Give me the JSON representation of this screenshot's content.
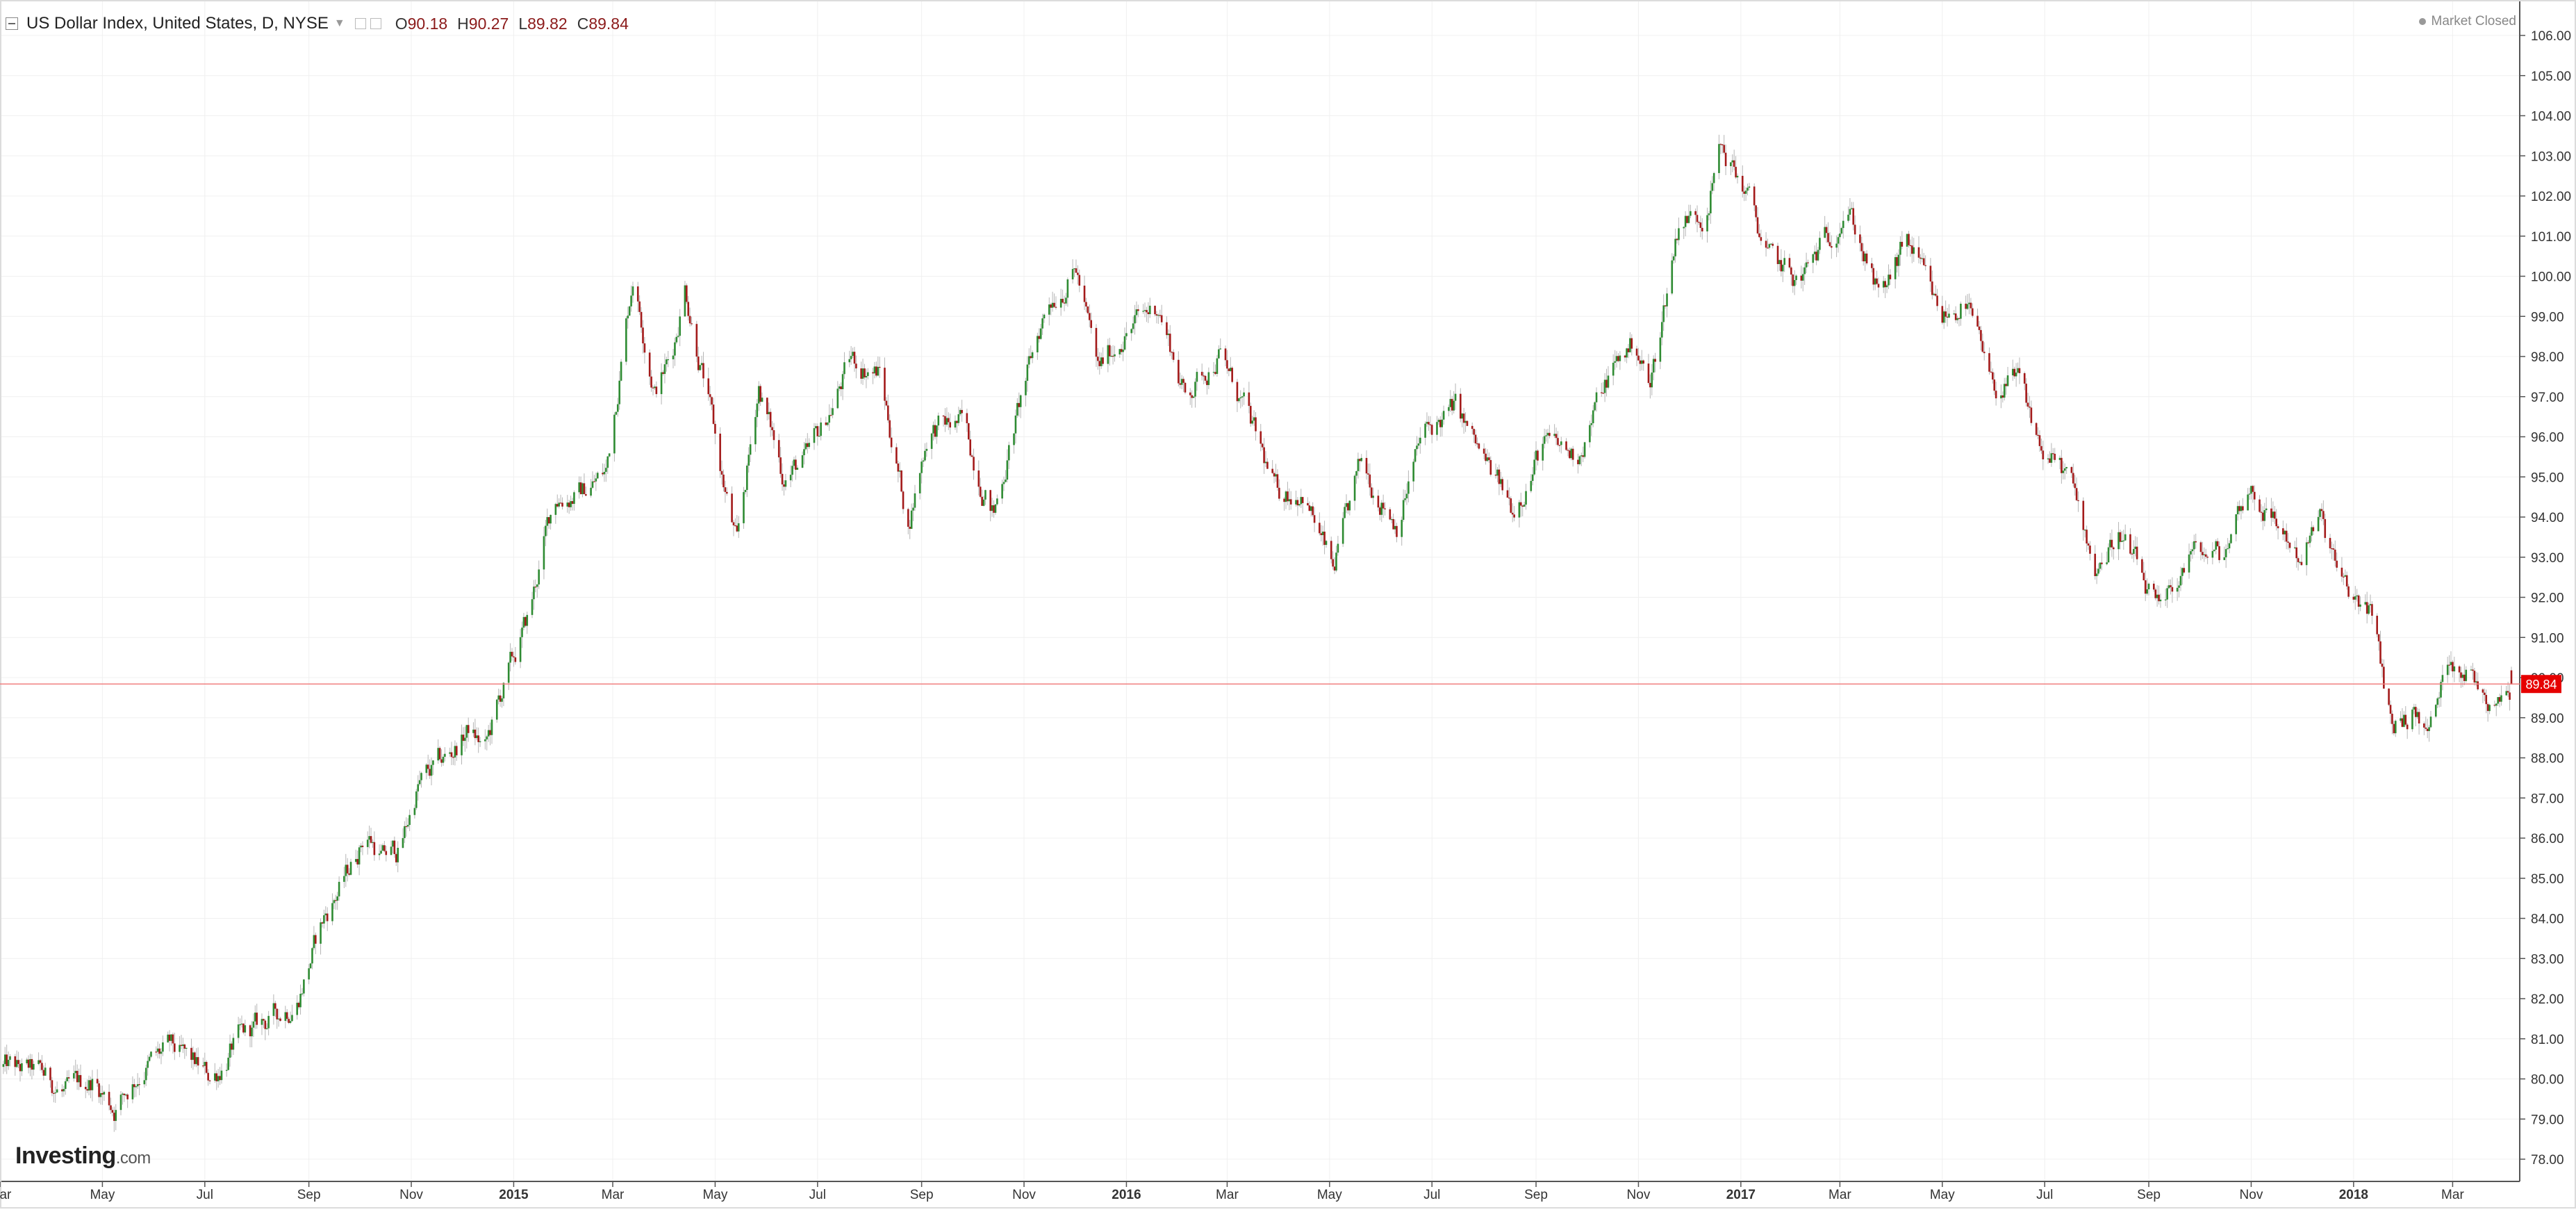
{
  "header": {
    "symbol_title": "US Dollar Index, United States, D, NYSE",
    "open_label": "O",
    "open_value": "90.18",
    "high_label": "H",
    "high_value": "90.27",
    "low_label": "L",
    "low_value": "89.82",
    "close_label": "C",
    "close_value": "89.84",
    "market_status": "Market Closed",
    "caret_icon": "caret-down-icon"
  },
  "branding": {
    "logo_name": "Investing",
    "logo_suffix": ".com"
  },
  "colors": {
    "up": "#2e8b32",
    "down": "#a31a1a",
    "last_price_line": "#f08080",
    "last_price_badge": "#e60000",
    "grid": "#f0f0f0"
  },
  "chart_data": {
    "type": "candlestick",
    "title": "US Dollar Index, United States, D, NYSE",
    "interval": "D",
    "x_tick_labels": [
      "Mar",
      "May",
      "Jul",
      "Sep",
      "Nov",
      "2015",
      "Mar",
      "May",
      "Jul",
      "Sep",
      "Nov",
      "2016",
      "Mar",
      "May",
      "Jul",
      "Sep",
      "Nov",
      "2017",
      "Mar",
      "May",
      "Jul",
      "Sep",
      "Nov",
      "2018",
      "Mar"
    ],
    "x_range": [
      "2014-03-01",
      "2018-04-05"
    ],
    "y_range": [
      77.5,
      106.5
    ],
    "y_ticks": [
      "78.00",
      "79.00",
      "80.00",
      "81.00",
      "82.00",
      "83.00",
      "84.00",
      "85.00",
      "86.00",
      "87.00",
      "88.00",
      "89.00",
      "90.00",
      "91.00",
      "92.00",
      "93.00",
      "94.00",
      "95.00",
      "96.00",
      "97.00",
      "98.00",
      "99.00",
      "100.00",
      "101.00",
      "102.00",
      "103.00",
      "104.00",
      "105.00",
      "106.00"
    ],
    "last_price": "89.84",
    "grid": true,
    "price_path": [
      [
        "2014-03-01",
        80.3
      ],
      [
        "2014-03-25",
        80.1
      ],
      [
        "2014-04-10",
        79.6
      ],
      [
        "2014-04-25",
        80.0
      ],
      [
        "2014-05-08",
        79.3
      ],
      [
        "2014-05-25",
        80.3
      ],
      [
        "2014-06-10",
        80.7
      ],
      [
        "2014-06-25",
        80.3
      ],
      [
        "2014-07-05",
        80.0
      ],
      [
        "2014-07-20",
        80.9
      ],
      [
        "2014-08-10",
        81.5
      ],
      [
        "2014-08-25",
        82.0
      ],
      [
        "2014-09-10",
        84.0
      ],
      [
        "2014-09-25",
        85.2
      ],
      [
        "2014-10-05",
        86.2
      ],
      [
        "2014-10-15",
        85.5
      ],
      [
        "2014-10-25",
        85.7
      ],
      [
        "2014-11-05",
        87.3
      ],
      [
        "2014-11-25",
        88.1
      ],
      [
        "2014-12-05",
        88.7
      ],
      [
        "2014-12-15",
        88.2
      ],
      [
        "2014-12-25",
        89.6
      ],
      [
        "2015-01-10",
        91.5
      ],
      [
        "2015-01-25",
        94.5
      ],
      [
        "2015-02-10",
        94.6
      ],
      [
        "2015-02-25",
        95.1
      ],
      [
        "2015-03-13",
        100.1
      ],
      [
        "2015-03-26",
        97.2
      ],
      [
        "2015-04-05",
        98.0
      ],
      [
        "2015-04-13",
        99.8
      ],
      [
        "2015-04-25",
        97.3
      ],
      [
        "2015-05-05",
        95.0
      ],
      [
        "2015-05-14",
        93.2
      ],
      [
        "2015-05-27",
        97.3
      ],
      [
        "2015-06-10",
        95.1
      ],
      [
        "2015-06-25",
        95.4
      ],
      [
        "2015-07-08",
        96.6
      ],
      [
        "2015-07-21",
        97.9
      ],
      [
        "2015-08-07",
        97.6
      ],
      [
        "2015-08-24",
        93.8
      ],
      [
        "2015-09-05",
        96.2
      ],
      [
        "2015-09-25",
        96.3
      ],
      [
        "2015-10-14",
        94.1
      ],
      [
        "2015-10-30",
        96.9
      ],
      [
        "2015-11-15",
        99.4
      ],
      [
        "2015-12-02",
        100.2
      ],
      [
        "2015-12-15",
        97.6
      ],
      [
        "2015-12-30",
        98.6
      ],
      [
        "2016-01-20",
        99.3
      ],
      [
        "2016-02-05",
        97.0
      ],
      [
        "2016-02-25",
        98.1
      ],
      [
        "2016-03-10",
        96.8
      ],
      [
        "2016-03-30",
        94.6
      ],
      [
        "2016-04-15",
        94.7
      ],
      [
        "2016-05-03",
        92.6
      ],
      [
        "2016-05-20",
        95.3
      ],
      [
        "2016-06-10",
        93.9
      ],
      [
        "2016-06-25",
        96.0
      ],
      [
        "2016-07-15",
        96.7
      ],
      [
        "2016-07-30",
        95.5
      ],
      [
        "2016-08-18",
        94.2
      ],
      [
        "2016-09-05",
        95.8
      ],
      [
        "2016-09-25",
        95.5
      ],
      [
        "2016-10-15",
        97.6
      ],
      [
        "2016-10-30",
        98.4
      ],
      [
        "2016-11-08",
        97.2
      ],
      [
        "2016-11-25",
        101.4
      ],
      [
        "2016-12-10",
        101.6
      ],
      [
        "2016-12-20",
        103.2
      ],
      [
        "2017-01-03",
        102.2
      ],
      [
        "2017-01-18",
        100.4
      ],
      [
        "2017-02-05",
        99.8
      ],
      [
        "2017-02-25",
        101.2
      ],
      [
        "2017-03-05",
        101.9
      ],
      [
        "2017-03-25",
        99.3
      ],
      [
        "2017-04-10",
        100.9
      ],
      [
        "2017-04-30",
        98.9
      ],
      [
        "2017-05-15",
        99.4
      ],
      [
        "2017-05-30",
        97.2
      ],
      [
        "2017-06-15",
        97.3
      ],
      [
        "2017-06-30",
        95.6
      ],
      [
        "2017-07-15",
        95.0
      ],
      [
        "2017-07-31",
        92.8
      ],
      [
        "2017-08-15",
        93.6
      ],
      [
        "2017-09-08",
        91.4
      ],
      [
        "2017-09-25",
        93.1
      ],
      [
        "2017-10-15",
        93.0
      ],
      [
        "2017-10-30",
        94.8
      ],
      [
        "2017-11-15",
        93.9
      ],
      [
        "2017-11-30",
        93.0
      ],
      [
        "2017-12-12",
        93.9
      ],
      [
        "2017-12-28",
        92.0
      ],
      [
        "2018-01-10",
        91.8
      ],
      [
        "2018-01-24",
        88.8
      ],
      [
        "2018-02-05",
        89.2
      ],
      [
        "2018-02-15",
        88.6
      ],
      [
        "2018-02-28",
        90.6
      ],
      [
        "2018-03-12",
        90.1
      ],
      [
        "2018-03-22",
        89.5
      ],
      [
        "2018-04-05",
        89.84
      ]
    ]
  }
}
